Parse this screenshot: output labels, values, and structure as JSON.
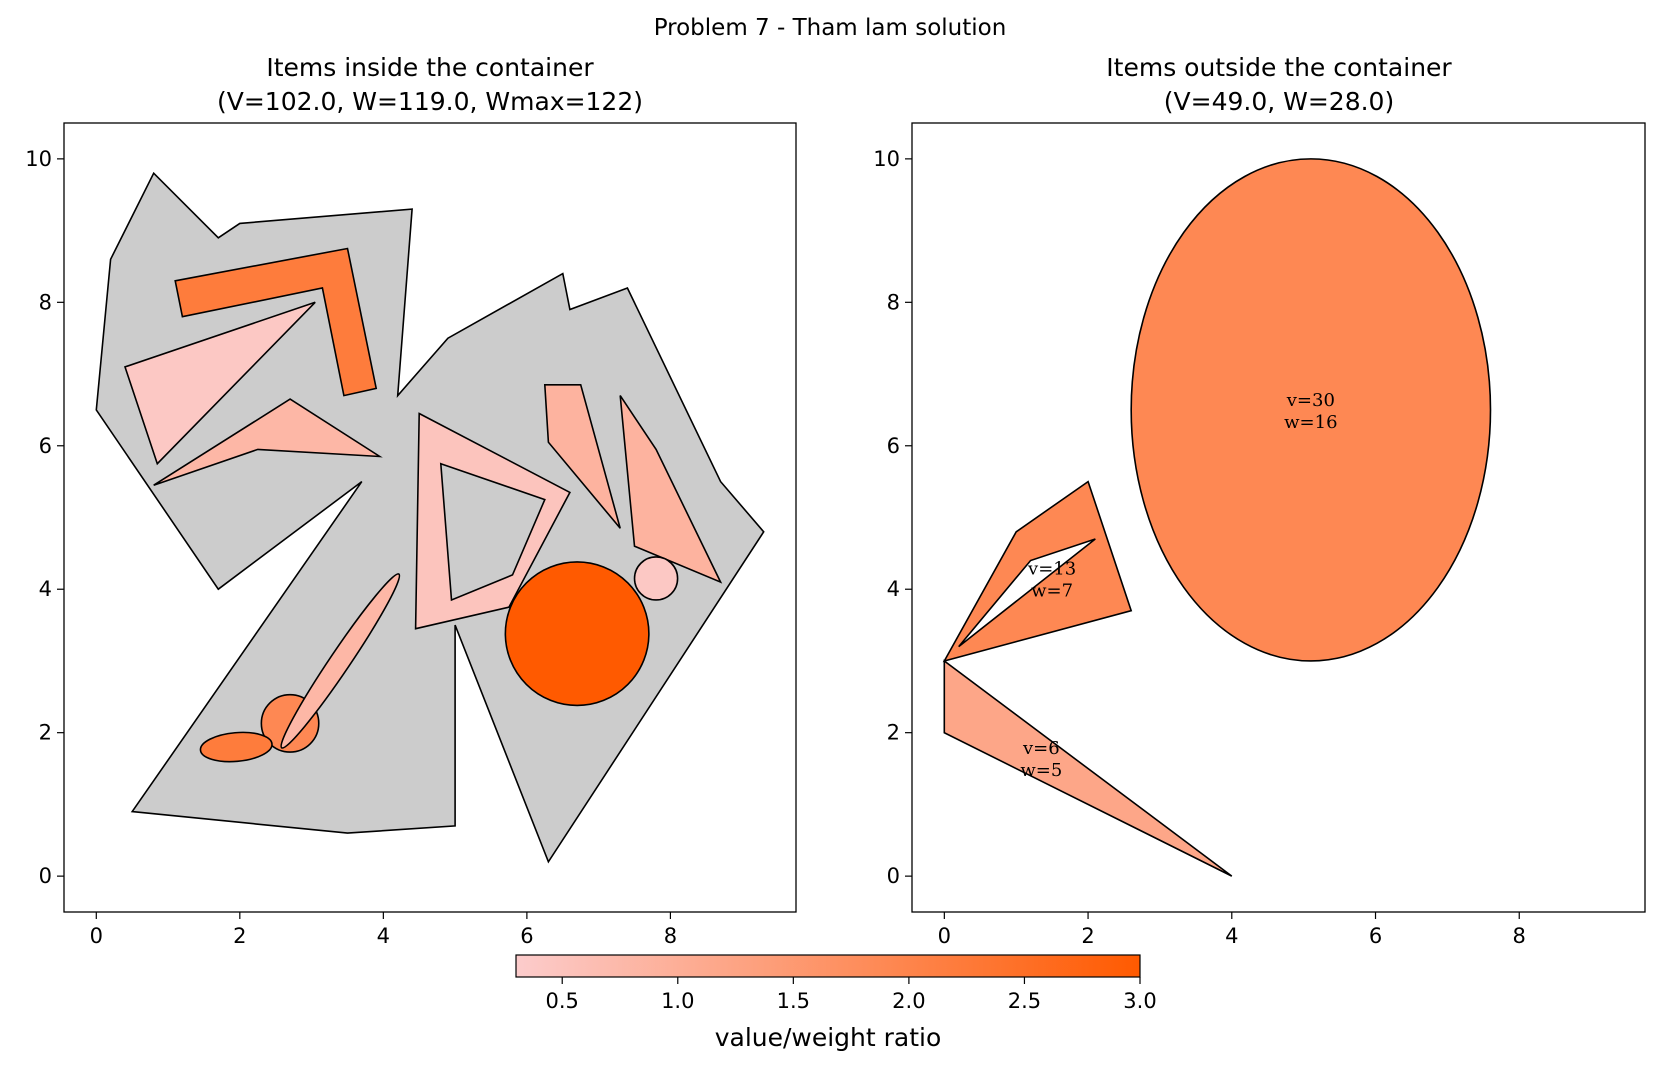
{
  "suptitle": "Problem 7 - Tham lam solution",
  "colorbar": {
    "label": "value/weight ratio",
    "min": 0.3,
    "max": 3.0,
    "ticks": [
      "0.5",
      "1.0",
      "1.5",
      "2.0",
      "2.5",
      "3.0"
    ],
    "color_low": "#fccccc",
    "color_high": "#ff5a00"
  },
  "chart_data": [
    {
      "type": "diagram",
      "title_line1": "Items inside the container",
      "title_line2": "(V=102.0, W=119.0, Wmax=122)",
      "xlim": [
        -0.45,
        9.75
      ],
      "ylim": [
        -0.5,
        10.5
      ],
      "xticks": [
        "0",
        "2",
        "4",
        "6",
        "8"
      ],
      "yticks": [
        "0",
        "2",
        "4",
        "6",
        "8",
        "10"
      ],
      "container": {
        "fill": "#cccccc",
        "points": [
          [
            0,
            6.5
          ],
          [
            0.2,
            8.6
          ],
          [
            0.8,
            9.8
          ],
          [
            1.7,
            8.9
          ],
          [
            2,
            9.1
          ],
          [
            4.4,
            9.3
          ],
          [
            4.2,
            6.7
          ],
          [
            4.9,
            7.5
          ],
          [
            6.5,
            8.4
          ],
          [
            6.6,
            7.9
          ],
          [
            7.4,
            8.2
          ],
          [
            8.7,
            5.5
          ],
          [
            9.3,
            4.8
          ],
          [
            6.3,
            0.2
          ],
          [
            5,
            3.5
          ],
          [
            5,
            0.7
          ],
          [
            3.5,
            0.6
          ],
          [
            0.5,
            0.9
          ],
          [
            3.7,
            5.5
          ],
          [
            1.7,
            4
          ],
          [
            0,
            6.5
          ]
        ]
      },
      "items": [
        {
          "kind": "polygon",
          "ratio": 2.2,
          "points": [
            [
              1.1,
              8.3
            ],
            [
              3.5,
              8.75
            ],
            [
              3.9,
              6.8
            ],
            [
              3.45,
              6.7
            ],
            [
              3.15,
              8.2
            ],
            [
              1.2,
              7.8
            ]
          ]
        },
        {
          "kind": "polygon",
          "ratio": 0.4,
          "points": [
            [
              0.4,
              7.1
            ],
            [
              3.05,
              8
            ],
            [
              0.85,
              5.75
            ]
          ]
        },
        {
          "kind": "polygon",
          "ratio": 0.8,
          "points": [
            [
              0.8,
              5.45
            ],
            [
              2.7,
              6.65
            ],
            [
              3.95,
              5.85
            ],
            [
              2.25,
              5.95
            ]
          ]
        },
        {
          "kind": "polygon",
          "ratio": 0.5,
          "points": [
            [
              4.5,
              6.45
            ],
            [
              6.6,
              5.35
            ],
            [
              5.75,
              3.75
            ],
            [
              4.45,
              3.45
            ]
          ]
        },
        {
          "kind": "polygon",
          "ratio": 0.9,
          "points": [
            [
              6.25,
              6.85
            ],
            [
              6.75,
              6.85
            ],
            [
              7.3,
              4.85
            ],
            [
              6.3,
              6.05
            ]
          ]
        },
        {
          "kind": "polygon",
          "ratio": 0.9,
          "points": [
            [
              7.3,
              6.7
            ],
            [
              7.8,
              5.95
            ],
            [
              8.7,
              4.1
            ],
            [
              7.5,
              4.6
            ]
          ]
        },
        {
          "kind": "circle",
          "ratio": 3.0,
          "cx": 6.7,
          "cy": 3.38,
          "r": 1.0
        },
        {
          "kind": "circle",
          "ratio": 0.4,
          "cx": 7.8,
          "cy": 4.15,
          "r": 0.3
        },
        {
          "kind": "circle",
          "ratio": 1.9,
          "cx": 2.7,
          "cy": 2.13,
          "r": 0.4
        },
        {
          "kind": "ellipse",
          "ratio": 0.8,
          "cx": 3.4,
          "cy": 3.0,
          "rx": 1.46,
          "ry": 0.14,
          "angle": -56
        },
        {
          "kind": "ellipse",
          "ratio": 2.2,
          "cx": 1.95,
          "cy": 1.8,
          "rx": 0.5,
          "ry": 0.2,
          "angle": -5
        }
      ],
      "holes": [
        {
          "points": [
            [
              4.8,
              5.75
            ],
            [
              6.25,
              5.25
            ],
            [
              5.8,
              4.2
            ],
            [
              4.95,
              3.85
            ]
          ]
        }
      ]
    },
    {
      "type": "diagram",
      "title_line1": "Items outside the container",
      "title_line2": "(V=49.0, W=28.0)",
      "xlim": [
        -0.45,
        9.75
      ],
      "ylim": [
        -0.5,
        10.5
      ],
      "xticks": [
        "0",
        "2",
        "4",
        "6",
        "8"
      ],
      "yticks": [
        "0",
        "2",
        "4",
        "6",
        "8",
        "10"
      ],
      "items": [
        {
          "kind": "ellipse",
          "ratio": 1.9,
          "cx": 5.1,
          "cy": 6.5,
          "rx": 2.5,
          "ry": 3.5,
          "angle": 0,
          "label_v": "v=30",
          "label_w": "w=16",
          "lx": 5.1,
          "ly": 6.5
        },
        {
          "kind": "polygon",
          "ratio": 1.9,
          "points": [
            [
              0,
              3
            ],
            [
              1,
              4.8
            ],
            [
              2,
              5.5
            ],
            [
              2.6,
              3.7
            ]
          ],
          "hole": [
            [
              0.2,
              3.2
            ],
            [
              1.2,
              4.4
            ],
            [
              2.1,
              4.7
            ]
          ],
          "label_v": "v=13",
          "label_w": "w=7",
          "lx": 1.5,
          "ly": 4.15
        },
        {
          "kind": "polygon",
          "ratio": 1.2,
          "points": [
            [
              0,
              3
            ],
            [
              0,
              2
            ],
            [
              4,
              0
            ]
          ],
          "label_v": "v=6",
          "label_w": "w=5",
          "lx": 1.35,
          "ly": 1.65
        }
      ]
    }
  ]
}
